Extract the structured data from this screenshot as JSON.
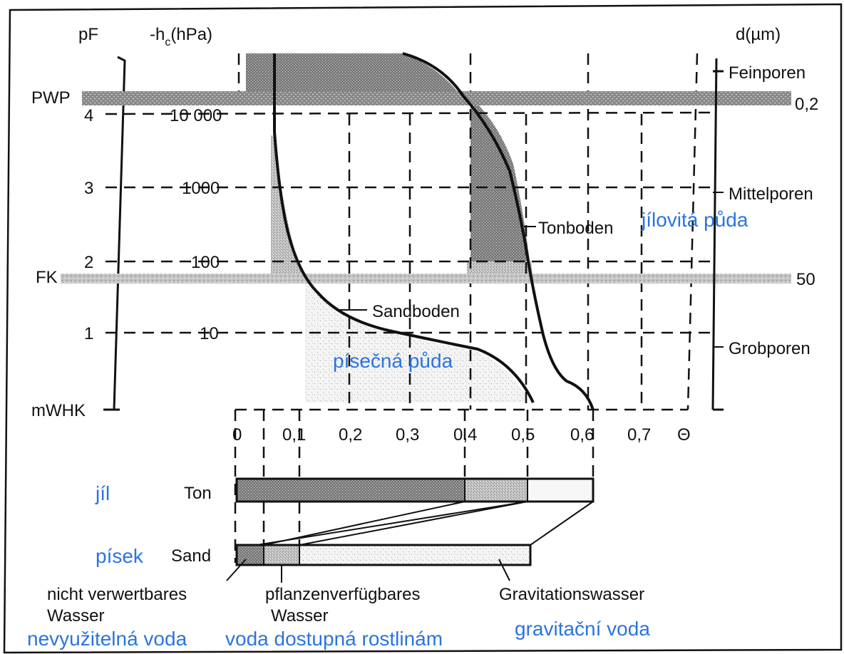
{
  "left_axes": {
    "pf_title": "pF",
    "hc_title_main": "-h",
    "hc_title_sub": "c",
    "hc_title_unit": "(hPa)",
    "pf_ticks": [
      "4",
      "3",
      "2",
      "1"
    ],
    "hc_ticks": [
      "10 000",
      "1000",
      "100",
      "10"
    ],
    "special_levels": [
      "PWP",
      "FK",
      "mWHK"
    ]
  },
  "right_axis": {
    "title": "d(µm)",
    "pore_classes": [
      "Feinporen",
      "Mittelporen",
      "Grobporen"
    ],
    "pore_limits": [
      "0,2",
      "50"
    ]
  },
  "x_axis": {
    "ticks": [
      "0",
      "0,1",
      "0,2",
      "0,3",
      "0,4",
      "0,5",
      "0,6",
      "0,7"
    ],
    "symbol": "Θ"
  },
  "curves": {
    "clay_label": "Tonboden",
    "clay_label_cz": "jílovitá půda",
    "sand_label": "Sandboden",
    "sand_label_cz": "písečná půda"
  },
  "bars": {
    "ton_label": "Ton",
    "ton_label_cz": "jíl",
    "sand_label": "Sand",
    "sand_label_cz": "písek",
    "ton_fractions": [
      0.4,
      0.51,
      0.63
    ],
    "sand_fractions": [
      0.05,
      0.11,
      0.51
    ]
  },
  "legend": {
    "unavailable_de_1": "nicht verwertbares",
    "unavailable_de_2": "Wasser",
    "unavailable_cz": "nevyužitelná voda",
    "plant_de_1": "pflanzenverfügbares",
    "plant_de_2": "Wasser",
    "plant_cz": "voda dostupná rostlinám",
    "gravity_de": "Gravitationswasser",
    "gravity_cz": "gravitační voda"
  }
}
